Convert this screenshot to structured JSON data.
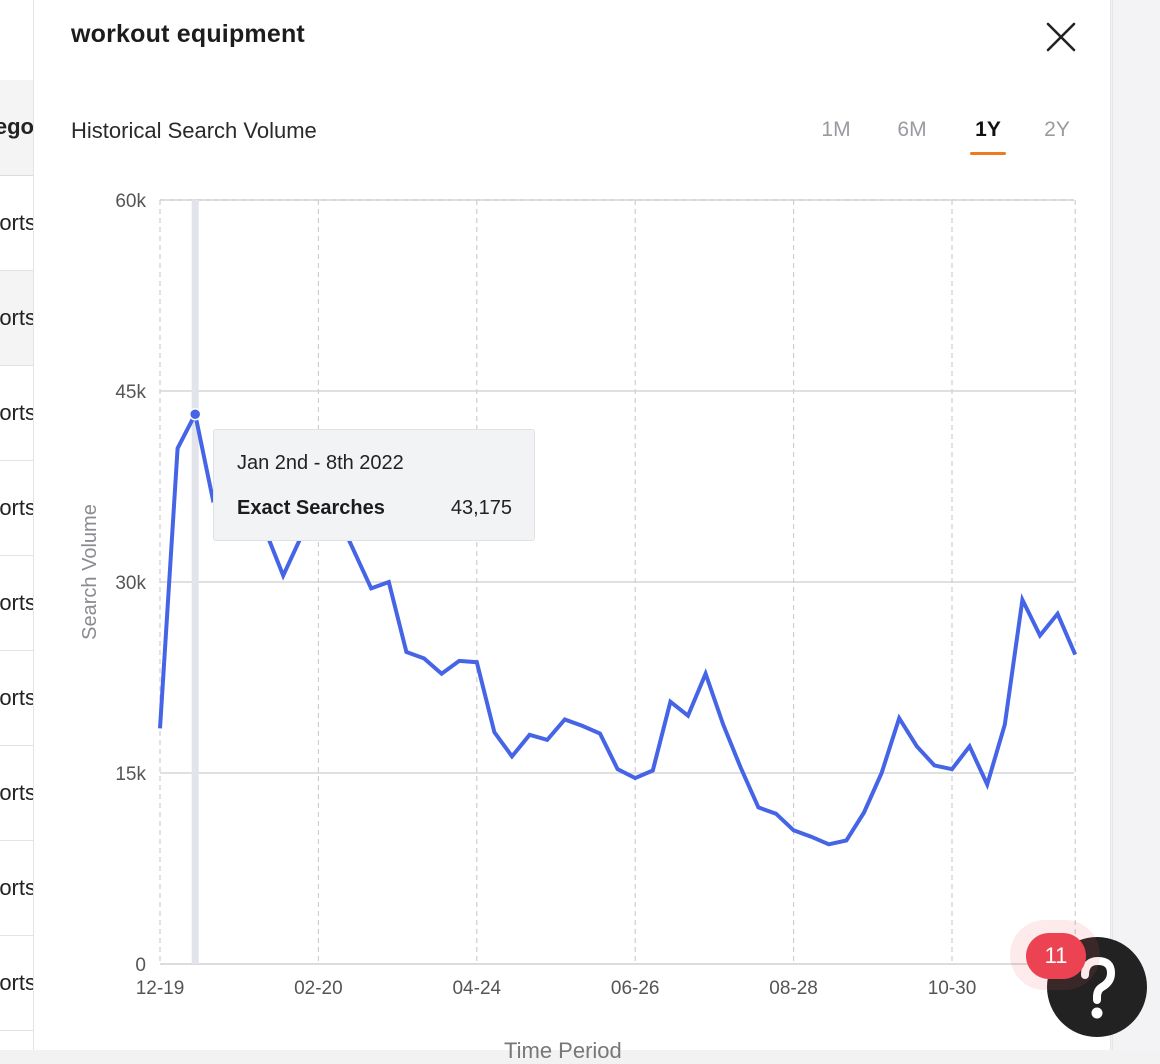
{
  "background_table": {
    "header_fragment": "ego",
    "row_fragments": [
      "orts",
      "orts",
      "orts",
      "orts",
      "orts",
      "orts",
      "orts",
      "orts",
      "orts"
    ]
  },
  "panel": {
    "title": "workout equipment",
    "close_icon": "close-icon",
    "section_title": "Historical Search Volume",
    "tabs": [
      {
        "label": "1M",
        "active": false
      },
      {
        "label": "6M",
        "active": false
      },
      {
        "label": "1Y",
        "active": true
      },
      {
        "label": "2Y",
        "active": false
      }
    ],
    "accent_color": "#f07a1e"
  },
  "chart_data": {
    "type": "line",
    "ylabel": "Search Volume",
    "xlabel": "Time Period",
    "ylim": [
      0,
      60000
    ],
    "y_ticks": [
      0,
      15000,
      30000,
      45000,
      60000
    ],
    "y_tick_labels": [
      "0",
      "15k",
      "30k",
      "45k",
      "60k"
    ],
    "x_tick_labels": [
      "12-19",
      "02-20",
      "04-24",
      "06-26",
      "08-28",
      "10-30"
    ],
    "x_tick_indices": [
      0,
      9,
      18,
      27,
      36,
      45
    ],
    "grid": true,
    "line_color": "#4564e6",
    "highlight_index": 2,
    "series": [
      {
        "values": [
          18500,
          40500,
          43175,
          36500,
          38000,
          35500,
          34000,
          30500,
          33500,
          35000,
          35500,
          32500,
          29500,
          30000,
          24500,
          24000,
          22800,
          23800,
          23700,
          18200,
          16300,
          18000,
          17600,
          19200,
          18700,
          18100,
          15300,
          14600,
          15200,
          20600,
          19500,
          22800,
          18800,
          15400,
          12300,
          11800,
          10500,
          10000,
          9400,
          9700,
          11900,
          15000,
          19300,
          17100,
          15600,
          15300,
          17100,
          14100,
          18800,
          28600,
          25800,
          27500,
          24300
        ]
      }
    ]
  },
  "tooltip": {
    "date": "Jan 2nd - 8th 2022",
    "label": "Exact Searches",
    "value": "43,175"
  },
  "help": {
    "icon": "question-icon",
    "badge_count": "11"
  }
}
